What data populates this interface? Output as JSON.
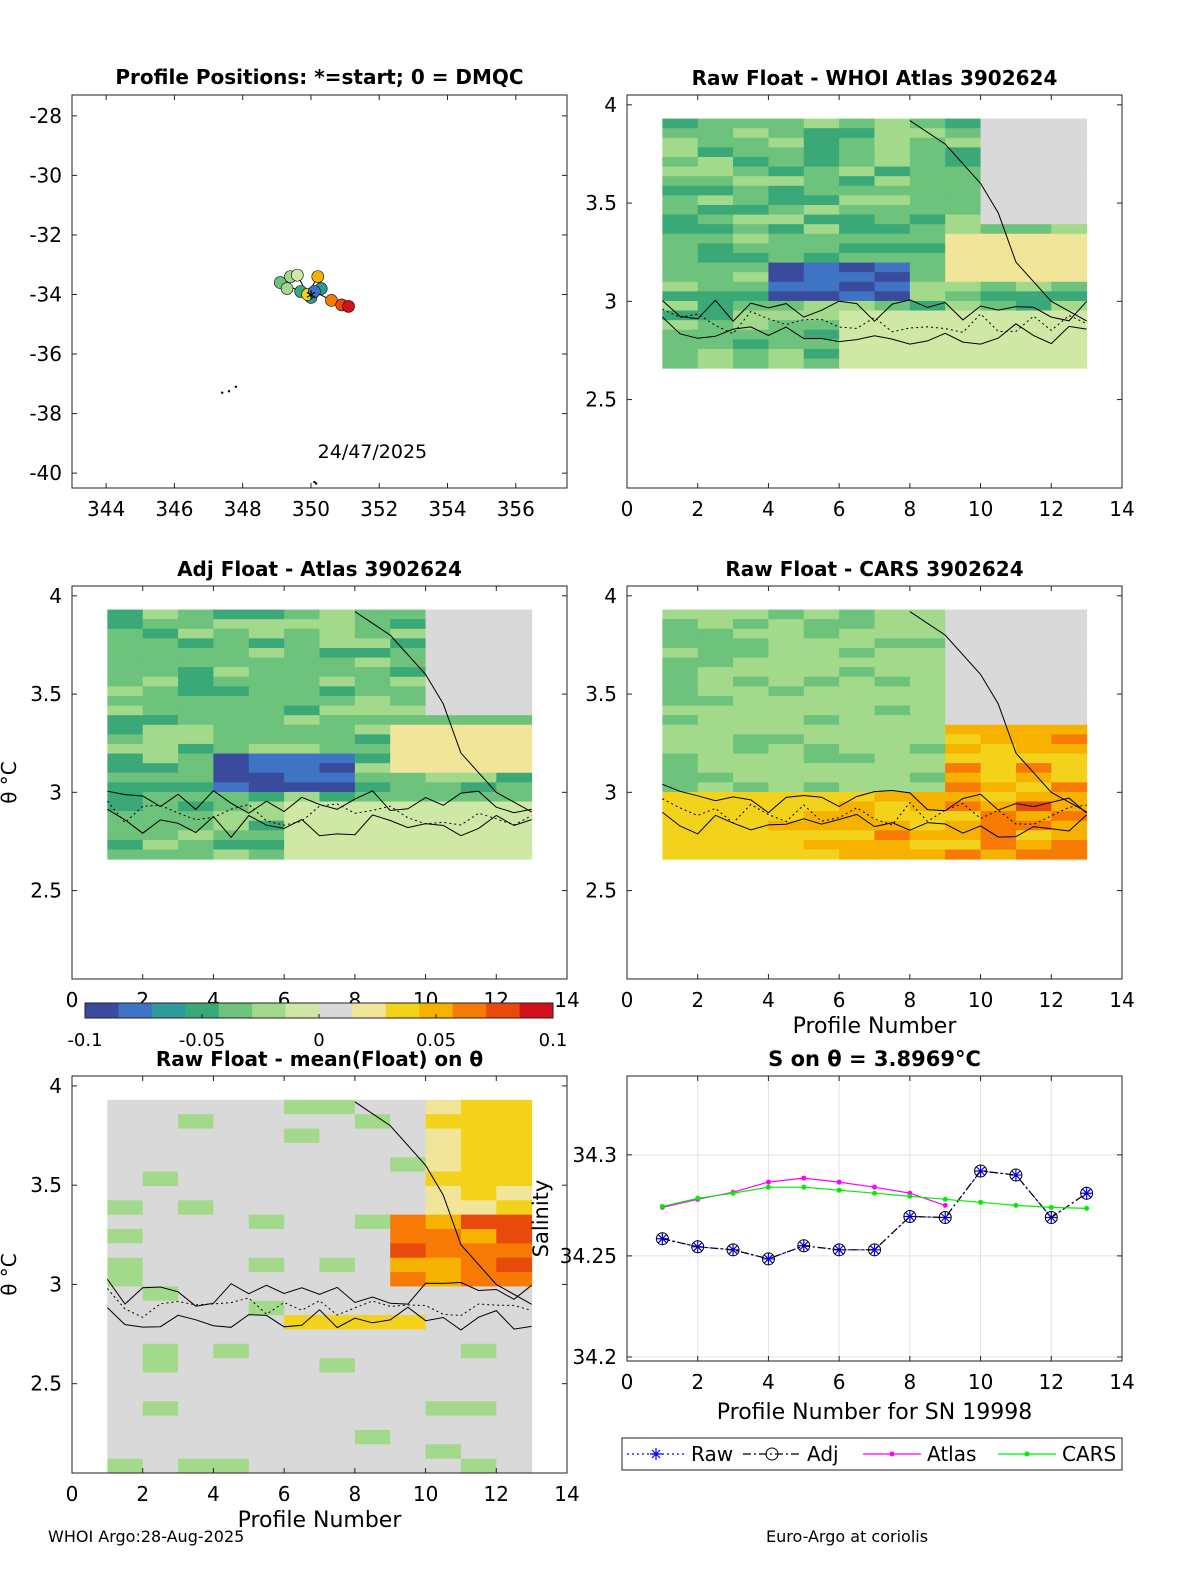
{
  "footer": {
    "left": "WHOI Argo:28-Aug-2025",
    "right": "Euro-Argo at coriolis"
  },
  "colormap": [
    "#3a4a9c",
    "#3f74c4",
    "#2e9a9a",
    "#3aa877",
    "#6dc27c",
    "#a3d98a",
    "#cfe8a6",
    "#d9d9d9",
    "#f1e59a",
    "#f2d21a",
    "#f7b200",
    "#f77a05",
    "#e84a0c",
    "#d3111b"
  ],
  "chart_data": [
    {
      "id": "positions",
      "type": "scatter",
      "title": "Profile Positions: *=start; 0 = DMQC",
      "xlabel": "",
      "ylabel": "",
      "xlim": [
        343,
        357.5
      ],
      "ylim": [
        -40.5,
        -27.3
      ],
      "xticks": [
        344,
        346,
        348,
        350,
        352,
        354,
        356
      ],
      "yticks": [
        -28,
        -30,
        -32,
        -34,
        -36,
        -38,
        -40
      ],
      "date_label": "24/47/2025",
      "track_lon": [
        350.0,
        349.7,
        349.1,
        349.3,
        349.4,
        349.6,
        349.9,
        350.2,
        350.3,
        350.1,
        350.6,
        350.9,
        351.1
      ],
      "track_lat": [
        -34.1,
        -33.9,
        -33.6,
        -33.8,
        -33.4,
        -33.35,
        -34.0,
        -33.4,
        -33.8,
        -33.9,
        -34.2,
        -34.35,
        -34.4
      ],
      "profile_color_index": [
        2,
        3,
        4,
        5,
        5,
        6,
        9,
        10,
        2,
        1,
        11,
        12,
        13
      ],
      "coast_points": [
        [
          347.4,
          -37.3
        ],
        [
          347.6,
          -37.25
        ],
        [
          347.8,
          -37.1
        ],
        [
          350.1,
          -40.3
        ],
        [
          350.15,
          -40.35
        ]
      ]
    },
    {
      "id": "raw-whoi",
      "type": "heatmap",
      "title": "Raw Float - WHOI Atlas  3902624",
      "xlim": [
        0,
        14
      ],
      "ylim": [
        2.05,
        4.05
      ],
      "xticks": [
        0,
        2,
        4,
        6,
        8,
        10,
        12,
        14
      ],
      "yticks": [
        2.5,
        3,
        3.5,
        4
      ],
      "ylabel": "",
      "xlabel": "",
      "seed": 11,
      "bias": -0.04,
      "hot": 0.0,
      "vis": true
    },
    {
      "id": "adj-atlas",
      "type": "heatmap",
      "title": "Adj Float - Atlas  3902624",
      "xlim": [
        0,
        14
      ],
      "ylim": [
        2.05,
        4.05
      ],
      "xticks": [
        0,
        2,
        4,
        6,
        8,
        10,
        12,
        14
      ],
      "yticks": [
        2.5,
        3,
        3.5,
        4
      ],
      "ylabel": "θ °C",
      "xlabel": "",
      "seed": 23,
      "bias": -0.04,
      "hot": 0.0,
      "vis": true
    },
    {
      "id": "raw-cars",
      "type": "heatmap",
      "title": "Raw Float - CARS  3902624",
      "xlim": [
        0,
        14
      ],
      "ylim": [
        2.05,
        4.05
      ],
      "xticks": [
        0,
        2,
        4,
        6,
        8,
        10,
        12,
        14
      ],
      "yticks": [
        2.5,
        3,
        3.5,
        4
      ],
      "ylabel": "",
      "xlabel": "Profile Number",
      "seed": 37,
      "bias": -0.015,
      "hot": 0.07,
      "vis": true
    },
    {
      "id": "raw-mean",
      "type": "heatmap",
      "title": "Raw Float - mean(Float) on θ",
      "xlim": [
        0,
        14
      ],
      "ylim": [
        2.05,
        4.05
      ],
      "xticks": [
        0,
        2,
        4,
        6,
        8,
        10,
        12,
        14
      ],
      "yticks": [
        2.5,
        3,
        3.5,
        4
      ],
      "ylabel": "θ °C",
      "xlabel": "Profile Number",
      "seed": 51,
      "bias": 0.0,
      "hot": 0.05,
      "vis": true
    },
    {
      "id": "colorbar",
      "type": "colorbar",
      "range": [
        -0.1,
        0.1
      ],
      "ticks": [
        -0.1,
        -0.05,
        0,
        0.05,
        0.1
      ],
      "tick_labels": [
        "-0.1",
        "-0.05",
        "0",
        "0.05",
        "0.1"
      ]
    },
    {
      "id": "salinity",
      "type": "line",
      "title": "S on θ = 3.8969°C",
      "xlabel": "Profile Number for SN 19998",
      "ylabel": "Salinity",
      "xlim": [
        0,
        14
      ],
      "ylim": [
        34.198,
        34.339
      ],
      "xticks": [
        0,
        2,
        4,
        6,
        8,
        10,
        12,
        14
      ],
      "yticks": [
        34.2,
        34.25,
        34.3
      ],
      "ytick_labels": [
        "34.2",
        "34.25",
        "34.3"
      ],
      "series": [
        {
          "name": "Raw",
          "color": "#0000ff",
          "style": "dotted",
          "marker": "star",
          "x": [
            1,
            2,
            3,
            4,
            5,
            6,
            7,
            8,
            9,
            10,
            11,
            12,
            13
          ],
          "y": [
            34.2585,
            34.2545,
            34.253,
            34.2485,
            34.255,
            34.253,
            34.253,
            34.2695,
            34.269,
            34.292,
            34.29,
            34.269,
            34.281
          ]
        },
        {
          "name": "Adj",
          "color": "#000000",
          "style": "dashdot",
          "marker": "circle",
          "x": [
            1,
            2,
            3,
            4,
            5,
            6,
            7,
            8,
            9,
            10,
            11,
            12,
            13
          ],
          "y": [
            34.2585,
            34.2545,
            34.253,
            34.2485,
            34.255,
            34.253,
            34.253,
            34.2695,
            34.269,
            34.292,
            34.29,
            34.269,
            34.281
          ]
        },
        {
          "name": "Atlas",
          "color": "#ff00ff",
          "style": "solid",
          "marker": "dot",
          "x": [
            1,
            2,
            3,
            4,
            5,
            6,
            7,
            8,
            9
          ],
          "y": [
            34.274,
            34.278,
            34.2815,
            34.2865,
            34.2885,
            34.2865,
            34.284,
            34.281,
            34.275
          ]
        },
        {
          "name": "CARS",
          "color": "#00ee00",
          "style": "solid",
          "marker": "dot",
          "x": [
            1,
            2,
            3,
            4,
            5,
            6,
            7,
            8,
            9,
            10,
            11,
            12,
            13
          ],
          "y": [
            34.2745,
            34.2785,
            34.281,
            34.284,
            34.284,
            34.2825,
            34.281,
            34.2795,
            34.278,
            34.2765,
            34.275,
            34.274,
            34.2735
          ]
        }
      ]
    }
  ]
}
